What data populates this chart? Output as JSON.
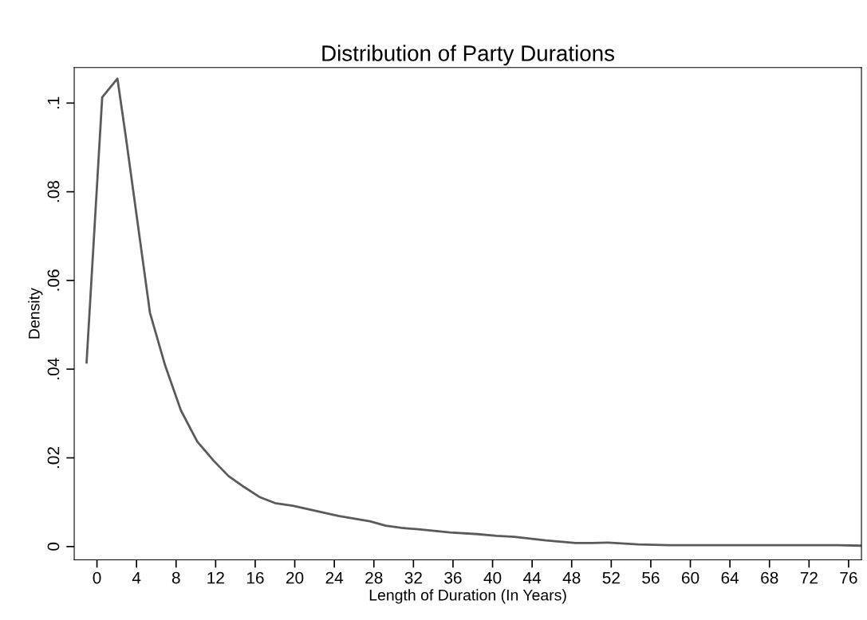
{
  "chart_data": {
    "type": "line",
    "title": "Distribution of Party Durations",
    "xlabel": "Length of Duration (In Years)",
    "ylabel": "Density",
    "series": [
      {
        "color": "#5a5a5a",
        "x": [
          -1.05,
          0.53,
          2.07,
          2.9,
          5.36,
          6.9,
          8.49,
          10.13,
          11.78,
          13.3,
          14.9,
          16.5,
          18.0,
          19.8,
          24.4,
          27.6,
          29.2,
          30.8,
          32.5,
          35.7,
          38.5,
          40.4,
          42.2,
          43.8,
          45.4,
          48.4,
          50.0,
          51.7,
          54.7,
          57.9,
          62.8,
          68.0,
          72.5,
          74.9,
          77.2
        ],
        "values": [
          0.0415,
          0.1013,
          0.1055,
          0.0927,
          0.0527,
          0.0408,
          0.0307,
          0.0237,
          0.0194,
          0.0159,
          0.0134,
          0.0111,
          0.0098,
          0.0092,
          0.0069,
          0.0057,
          0.0047,
          0.0042,
          0.0039,
          0.0032,
          0.0028,
          0.0024,
          0.0022,
          0.0018,
          0.0014,
          0.0008,
          0.0008,
          0.0009,
          0.0005,
          0.0003,
          0.0003,
          0.0003,
          0.0003,
          0.0003,
          0.0002
        ]
      }
    ],
    "xlim": [
      -2.3,
      77.3
    ],
    "ylim": [
      -0.003,
      0.108
    ],
    "xticks": [
      0,
      4,
      8,
      12,
      16,
      20,
      24,
      28,
      32,
      36,
      40,
      44,
      48,
      52,
      56,
      60,
      64,
      68,
      72,
      76
    ],
    "yticks": [
      0,
      {
        "value": 0.02,
        "label": ".02"
      },
      {
        "value": 0.04,
        "label": ".04"
      },
      {
        "value": 0.06,
        "label": ".06"
      },
      {
        "value": 0.08,
        "label": ".08"
      },
      {
        "value": 0.1,
        "label": ".1"
      }
    ],
    "grid": false,
    "marker": "none",
    "line_style": "solid"
  }
}
